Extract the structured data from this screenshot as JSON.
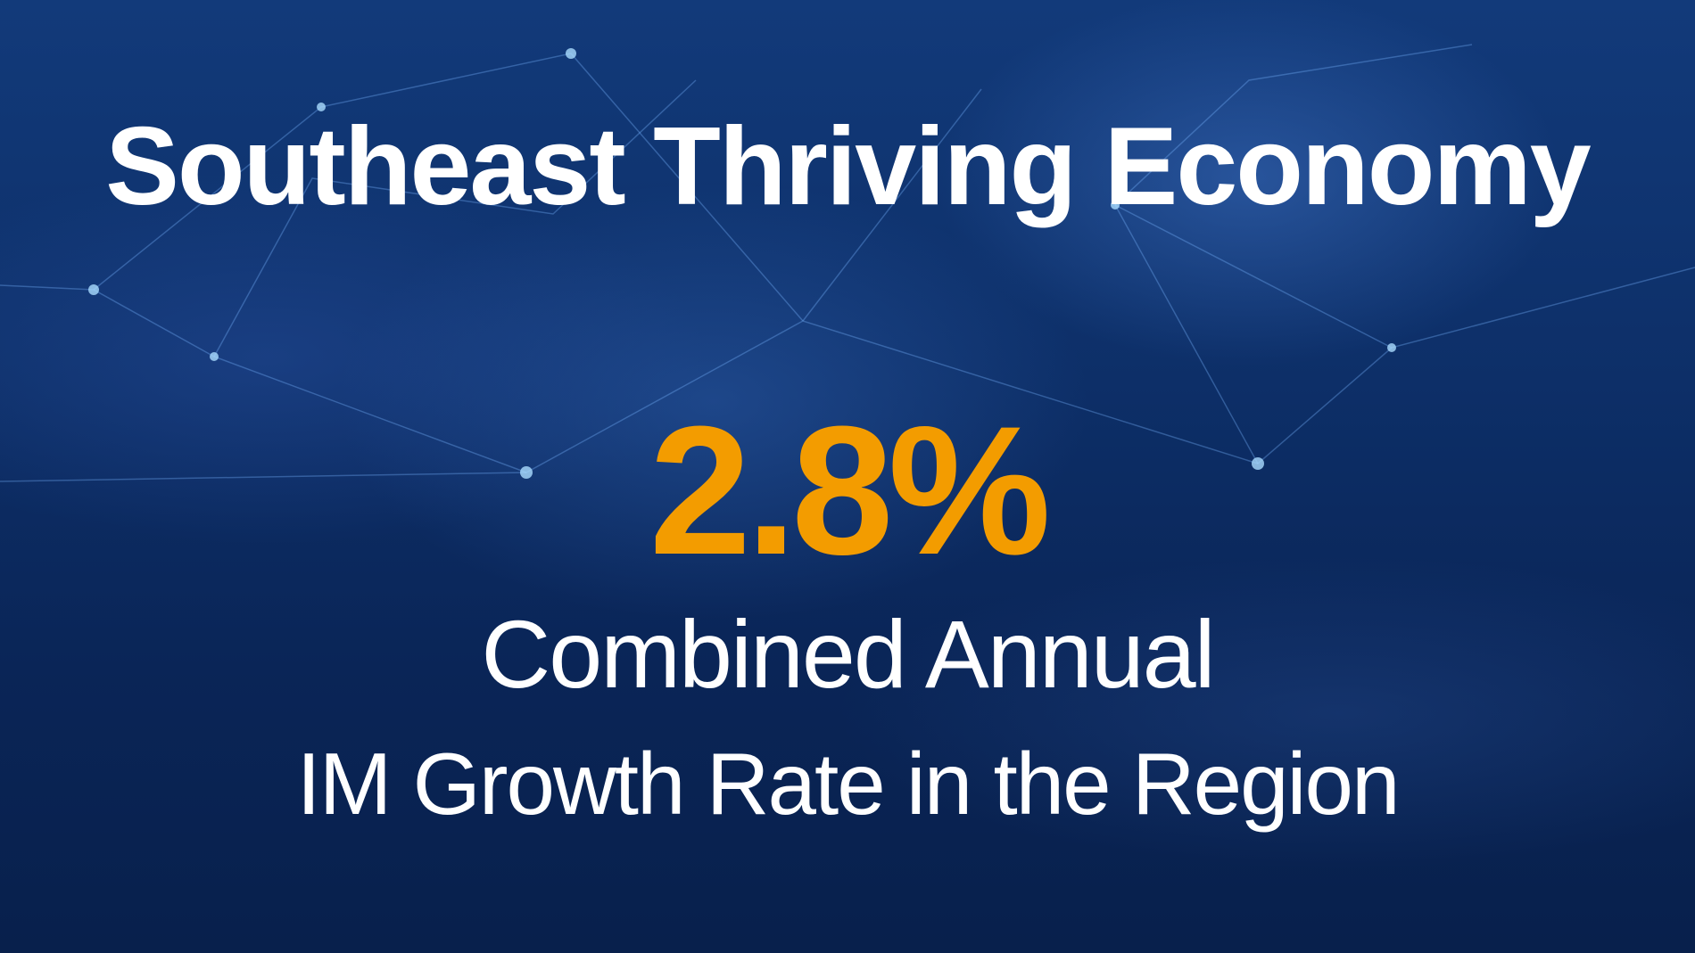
{
  "headline": {
    "title": "Southeast Thriving Economy"
  },
  "stat": {
    "value": "2.8%",
    "color": "#f39c00"
  },
  "caption": {
    "line1": "Combined Annual",
    "line2": "IM Growth Rate in the Region"
  },
  "background": {
    "description_color": "#0d2f68"
  }
}
